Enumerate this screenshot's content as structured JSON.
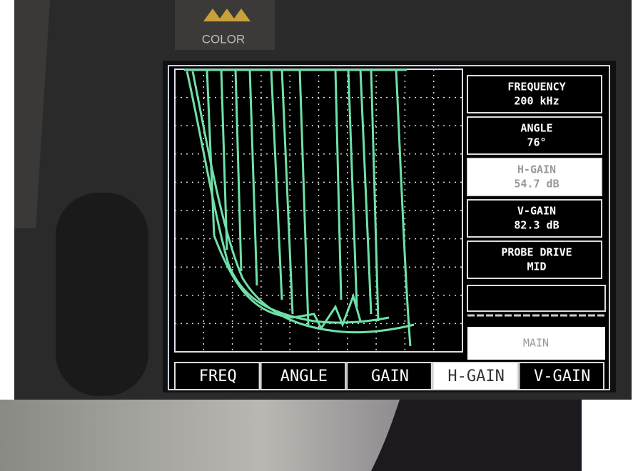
{
  "logo": "COLOR",
  "panel": {
    "items": [
      {
        "label": "FREQUENCY",
        "value": "200 kHz",
        "selected": true
      },
      {
        "label": "ANGLE",
        "value": "76°",
        "selected": true
      },
      {
        "label": "H-GAIN",
        "value": "54.7 dB",
        "selected": false
      },
      {
        "label": "V-GAIN",
        "value": "82.3 dB",
        "selected": true
      },
      {
        "label": "PROBE DRIVE",
        "value": "MID",
        "selected": true
      }
    ],
    "footer": "MAIN"
  },
  "softkeys": [
    "FREQ",
    "ANGLE",
    "GAIN",
    "H-GAIN",
    "V-GAIN"
  ]
}
